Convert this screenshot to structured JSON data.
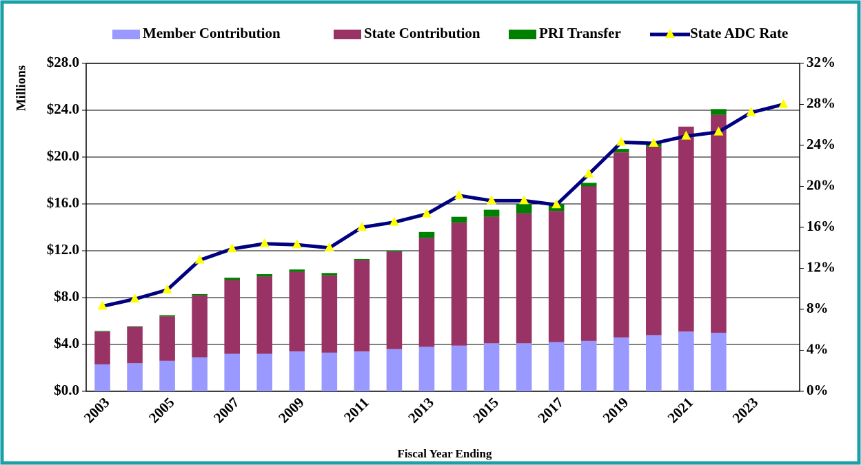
{
  "chart_data": {
    "type": "bar",
    "categories": [
      "2003",
      null,
      "2005",
      null,
      "2007",
      null,
      "2009",
      null,
      "2011",
      null,
      "2013",
      null,
      "2015",
      null,
      "2017",
      null,
      "2019",
      null,
      "2021",
      null,
      "2023",
      null
    ],
    "series": [
      {
        "name": "Member Contribution",
        "color": "#9999ff",
        "values": [
          2.3,
          2.4,
          2.6,
          2.9,
          3.2,
          3.2,
          3.4,
          3.3,
          3.4,
          3.6,
          3.8,
          3.9,
          4.1,
          4.1,
          4.2,
          4.3,
          4.6,
          4.8,
          5.1,
          5.0,
          null,
          null
        ]
      },
      {
        "name": "State Contribution",
        "color": "#993366",
        "values": [
          2.8,
          3.1,
          3.8,
          5.3,
          6.3,
          6.6,
          6.8,
          6.6,
          7.8,
          8.3,
          9.3,
          10.5,
          10.8,
          11.1,
          11.2,
          13.2,
          15.8,
          16.1,
          17.5,
          18.6,
          null,
          null
        ]
      },
      {
        "name": "PRI Transfer",
        "color": "#008000",
        "values": [
          0.05,
          0.05,
          0.1,
          0.1,
          0.2,
          0.2,
          0.2,
          0.2,
          0.1,
          0.1,
          0.5,
          0.5,
          0.6,
          0.8,
          0.6,
          0.3,
          0.3,
          0.3,
          0,
          0.5,
          null,
          null
        ]
      },
      {
        "name": "State ADC Rate",
        "type": "line",
        "axis": "y2",
        "color": "#000080",
        "marker_color": "#ffff00",
        "values": [
          8.3,
          9.0,
          9.9,
          12.8,
          13.9,
          14.4,
          14.3,
          14.0,
          16.0,
          16.5,
          17.3,
          19.1,
          18.6,
          18.6,
          18.2,
          21.2,
          24.3,
          24.2,
          24.9,
          25.3,
          27.2,
          28.0
        ]
      }
    ],
    "ylabel": "Millions",
    "xlabel": "Fiscal Year Ending",
    "ylim": [
      0,
      28
    ],
    "yticks": [
      {
        "value": 0,
        "label": "$0.0"
      },
      {
        "value": 4,
        "label": "$4.0"
      },
      {
        "value": 8,
        "label": "$8.0"
      },
      {
        "value": 12,
        "label": "$12.0"
      },
      {
        "value": 16,
        "label": "$16.0"
      },
      {
        "value": 20,
        "label": "$20.0"
      },
      {
        "value": 24,
        "label": "$24.0"
      },
      {
        "value": 28,
        "label": "$28.0"
      }
    ],
    "y2lim": [
      0,
      32
    ],
    "y2ticks": [
      {
        "value": 0,
        "label": "0%"
      },
      {
        "value": 4,
        "label": "4%"
      },
      {
        "value": 8,
        "label": "8%"
      },
      {
        "value": 12,
        "label": "12%"
      },
      {
        "value": 16,
        "label": "16%"
      },
      {
        "value": 20,
        "label": "20%"
      },
      {
        "value": 24,
        "label": "24%"
      },
      {
        "value": 28,
        "label": "28%"
      },
      {
        "value": 32,
        "label": "32%"
      }
    ],
    "grid": true,
    "stacked": true,
    "legend": "top",
    "border_color": "#1aa0a8"
  }
}
